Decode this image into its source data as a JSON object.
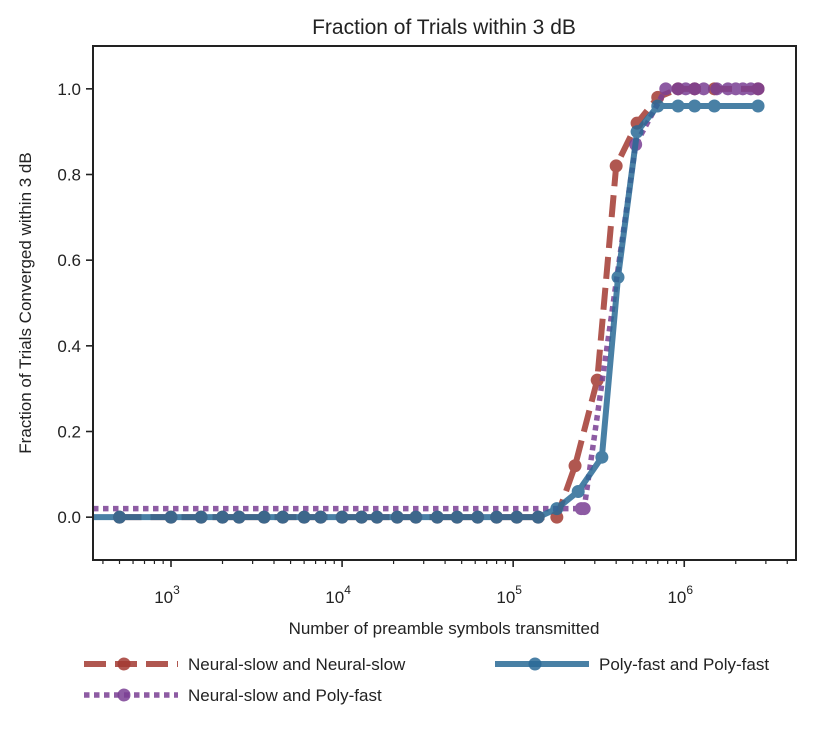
{
  "chart_data": {
    "type": "line",
    "title": "Fraction of Trials within 3 dB",
    "xlabel": "Number of preamble symbols transmitted",
    "ylabel": "Fraction of Trials Converged within 3 dB",
    "xscale": "log",
    "xlim": [
      350,
      4500000
    ],
    "ylim": [
      -0.1,
      1.1
    ],
    "yticks": [
      {
        "value": 0.0,
        "label": "0.0"
      },
      {
        "value": 0.2,
        "label": "0.2"
      },
      {
        "value": 0.4,
        "label": "0.4"
      },
      {
        "value": 0.6,
        "label": "0.6"
      },
      {
        "value": 0.8,
        "label": "0.8"
      },
      {
        "value": 1.0,
        "label": "1.0"
      }
    ],
    "xticks": [
      {
        "value": 1000,
        "base": "10",
        "exp": "3"
      },
      {
        "value": 10000,
        "base": "10",
        "exp": "4"
      },
      {
        "value": 100000,
        "base": "10",
        "exp": "5"
      },
      {
        "value": 1000000,
        "base": "10",
        "exp": "6"
      }
    ],
    "grid": false,
    "legend_position": "bottom",
    "series": [
      {
        "name": "Neural-slow and Neural-slow",
        "color": "#a33a32",
        "style": "dashed",
        "points": [
          [
            500,
            0.0
          ],
          [
            1000,
            0.0
          ],
          [
            1500,
            0.0
          ],
          [
            2000,
            0.0
          ],
          [
            2500,
            0.0
          ],
          [
            3500,
            0.0
          ],
          [
            4500,
            0.0
          ],
          [
            6000,
            0.0
          ],
          [
            7500,
            0.0
          ],
          [
            10000,
            0.0
          ],
          [
            13000,
            0.0
          ],
          [
            16000,
            0.0
          ],
          [
            21000,
            0.0
          ],
          [
            27000,
            0.0
          ],
          [
            36000,
            0.0
          ],
          [
            47000,
            0.0
          ],
          [
            62000,
            0.0
          ],
          [
            80000,
            0.0
          ],
          [
            105000,
            0.0
          ],
          [
            140000,
            0.0
          ],
          [
            180000,
            0.0
          ],
          [
            230000,
            0.12
          ],
          [
            310000,
            0.32
          ],
          [
            400000,
            0.82
          ],
          [
            530000,
            0.92
          ],
          [
            700000,
            0.98
          ],
          [
            920000,
            1.0
          ],
          [
            1150000,
            1.0
          ],
          [
            1500000,
            1.0
          ],
          [
            2700000,
            1.0
          ]
        ]
      },
      {
        "name": "Neural-slow and Poly-fast",
        "color": "#7a3f94",
        "style": "dotted",
        "points": [
          [
            350,
            0.02
          ],
          [
            250000,
            0.02
          ],
          [
            260000,
            0.02
          ],
          [
            520000,
            0.87
          ],
          [
            780000,
            1.0
          ],
          [
            920000,
            1.0
          ],
          [
            1020000,
            1.0
          ],
          [
            1150000,
            1.0
          ],
          [
            1300000,
            1.0
          ],
          [
            1550000,
            1.0
          ],
          [
            1800000,
            1.0
          ],
          [
            2000000,
            1.0
          ],
          [
            2200000,
            1.0
          ],
          [
            2450000,
            1.0
          ],
          [
            2700000,
            1.0
          ]
        ]
      },
      {
        "name": "Poly-fast and Poly-fast",
        "color": "#2a6a96",
        "style": "solid",
        "points": [
          [
            350,
            0.0
          ],
          [
            500,
            0.0
          ],
          [
            1000,
            0.0
          ],
          [
            1500,
            0.0
          ],
          [
            2000,
            0.0
          ],
          [
            2500,
            0.0
          ],
          [
            3500,
            0.0
          ],
          [
            4500,
            0.0
          ],
          [
            6000,
            0.0
          ],
          [
            7500,
            0.0
          ],
          [
            10000,
            0.0
          ],
          [
            13000,
            0.0
          ],
          [
            16000,
            0.0
          ],
          [
            21000,
            0.0
          ],
          [
            27000,
            0.0
          ],
          [
            36000,
            0.0
          ],
          [
            47000,
            0.0
          ],
          [
            62000,
            0.0
          ],
          [
            80000,
            0.0
          ],
          [
            105000,
            0.0
          ],
          [
            140000,
            0.0
          ],
          [
            180000,
            0.02
          ],
          [
            240000,
            0.06
          ],
          [
            330000,
            0.14
          ],
          [
            410000,
            0.56
          ],
          [
            530000,
            0.9
          ],
          [
            700000,
            0.96
          ],
          [
            920000,
            0.96
          ],
          [
            1150000,
            0.96
          ],
          [
            1500000,
            0.96
          ],
          [
            2700000,
            0.96
          ]
        ]
      }
    ]
  }
}
